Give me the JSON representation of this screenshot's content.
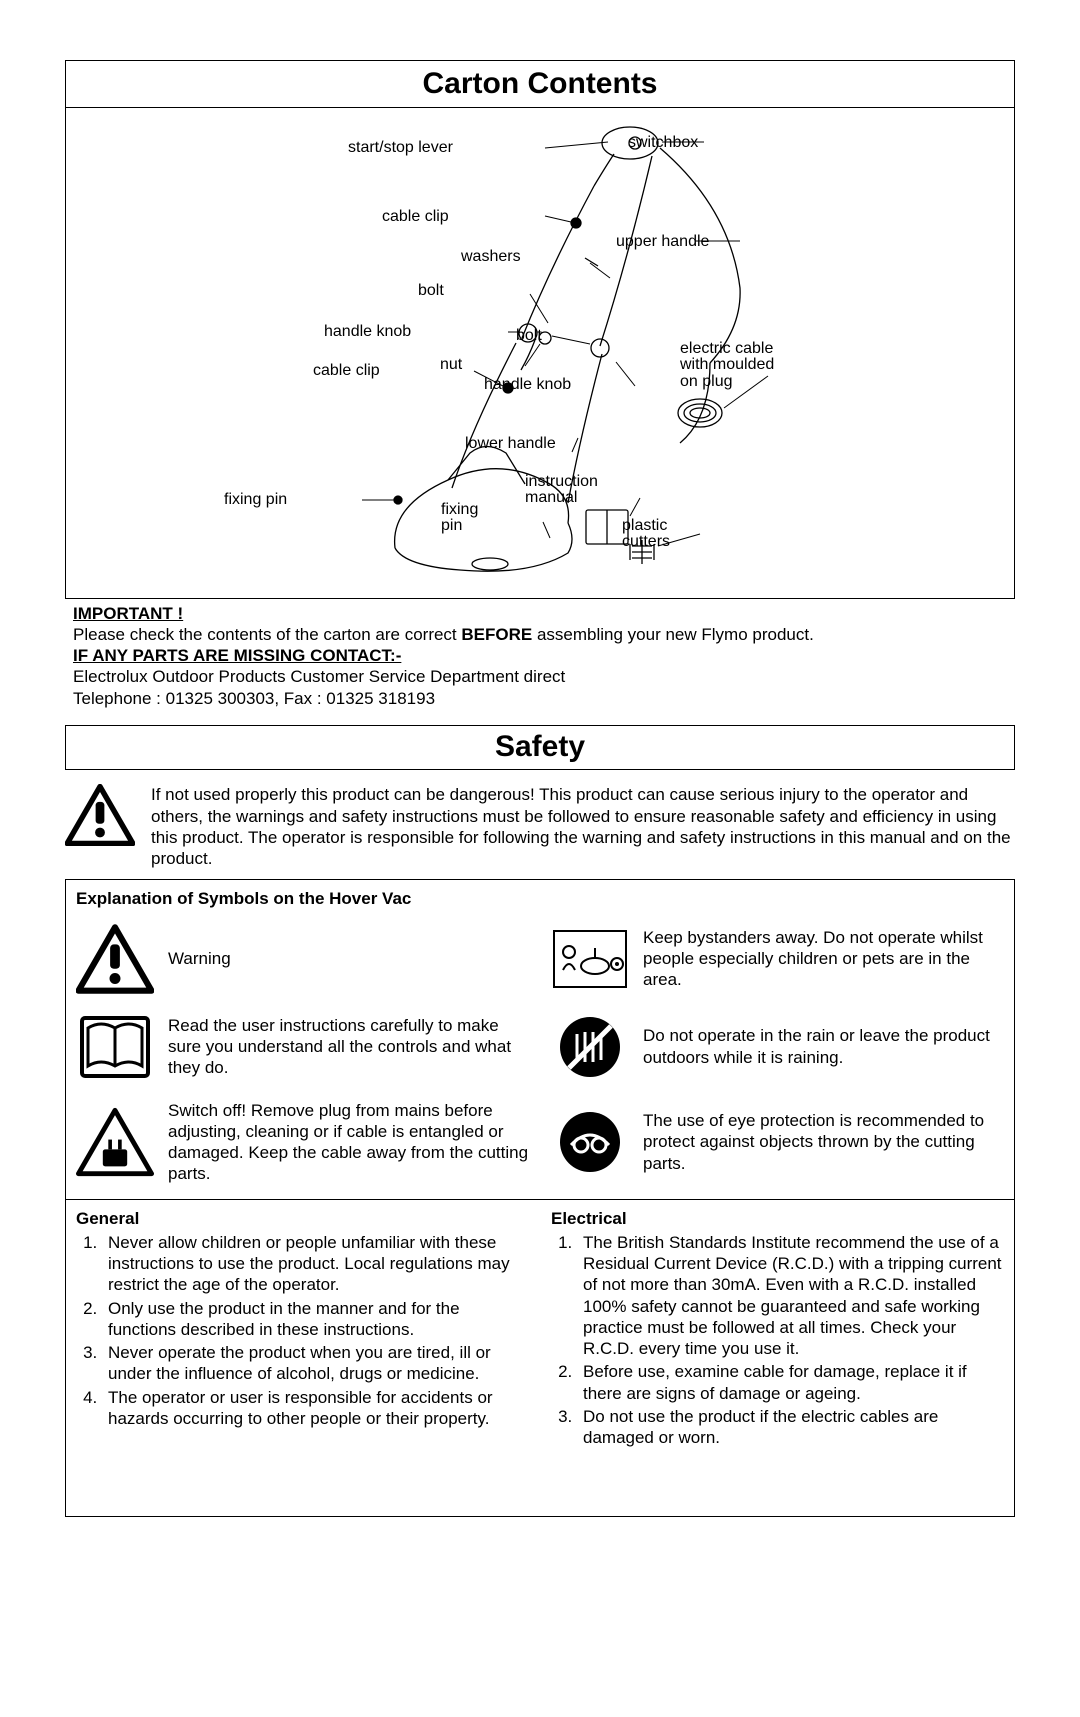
{
  "carton": {
    "title": "Carton Contents",
    "labels": {
      "start_stop_lever": "start/stop lever",
      "switchbox": "switchbox",
      "cable_clip_top": "cable clip",
      "upper_handle": "upper handle",
      "washers": "washers",
      "bolt_top": "bolt",
      "handle_knob_left": "handle knob",
      "bolt_mid": "bolt",
      "cable_clip_mid": "cable clip",
      "nut": "nut",
      "handle_knob_right": "handle knob",
      "electric_cable": "electric cable\nwith moulded\non plug",
      "lower_handle": "lower handle",
      "fixing_pin_left": "fixing pin",
      "fixing_pin_mid": "fixing\npin",
      "instruction_manual": "instruction\nmanual",
      "plastic_cutters": "plastic\ncutters"
    }
  },
  "important": {
    "title": "IMPORTANT !",
    "check_pre": "Please check the contents of the carton are correct ",
    "before": "BEFORE",
    "check_post": " assembling your new Flymo product.",
    "missing": "IF ANY PARTS ARE MISSING CONTACT:-",
    "dept": "Electrolux Outdoor Products Customer Service Department direct",
    "phone": "Telephone : 01325 300303, Fax : 01325 318193"
  },
  "safety": {
    "title": "Safety",
    "intro": "If not used properly this product can be dangerous!  This product can cause serious injury to the operator and others, the warnings and safety instructions must be followed to ensure reasonable safety and efficiency in using this product.  The operator is responsible for following the warning and safety instructions in this manual and on the product.",
    "symbols_title": "Explanation of Symbols on the Hover Vac",
    "symbols": {
      "warning": "Warning",
      "bystanders": "Keep bystanders away.  Do not operate whilst people especially children or pets are in the area.",
      "read": "Read the user instructions carefully to make sure you understand all the controls and what they do.",
      "rain": "Do not operate in the rain or leave the product outdoors while it is raining.",
      "switch_off": "Switch off! Remove plug from mains before adjusting, cleaning or if cable is entangled or damaged.  Keep the cable away from the cutting parts.",
      "eye": "The use of eye protection is recommended to protect against objects thrown by the cutting parts."
    },
    "general": {
      "title": "General",
      "items": [
        "Never allow children or people unfamiliar with these instructions to use the product. Local regulations may restrict the age of the operator.",
        "Only use the product in the manner and for the functions described in these instructions.",
        "Never operate the product when you are tired, ill or under the influence of alcohol, drugs or medicine.",
        "The operator or user is responsible for accidents or hazards occurring to other people or their property."
      ]
    },
    "electrical": {
      "title": "Electrical",
      "items": [
        "The British Standards Institute recommend the use of a Residual Current Device (R.C.D.) with a tripping current of not more than 30mA.  Even with a R.C.D. installed 100% safety cannot be guaranteed and safe working practice must be followed at all times.  Check your R.C.D. every time you use it.",
        "Before use, examine cable for damage, replace it if there are signs of damage or ageing.",
        "Do not use the product if the electric cables are damaged or worn."
      ]
    }
  }
}
